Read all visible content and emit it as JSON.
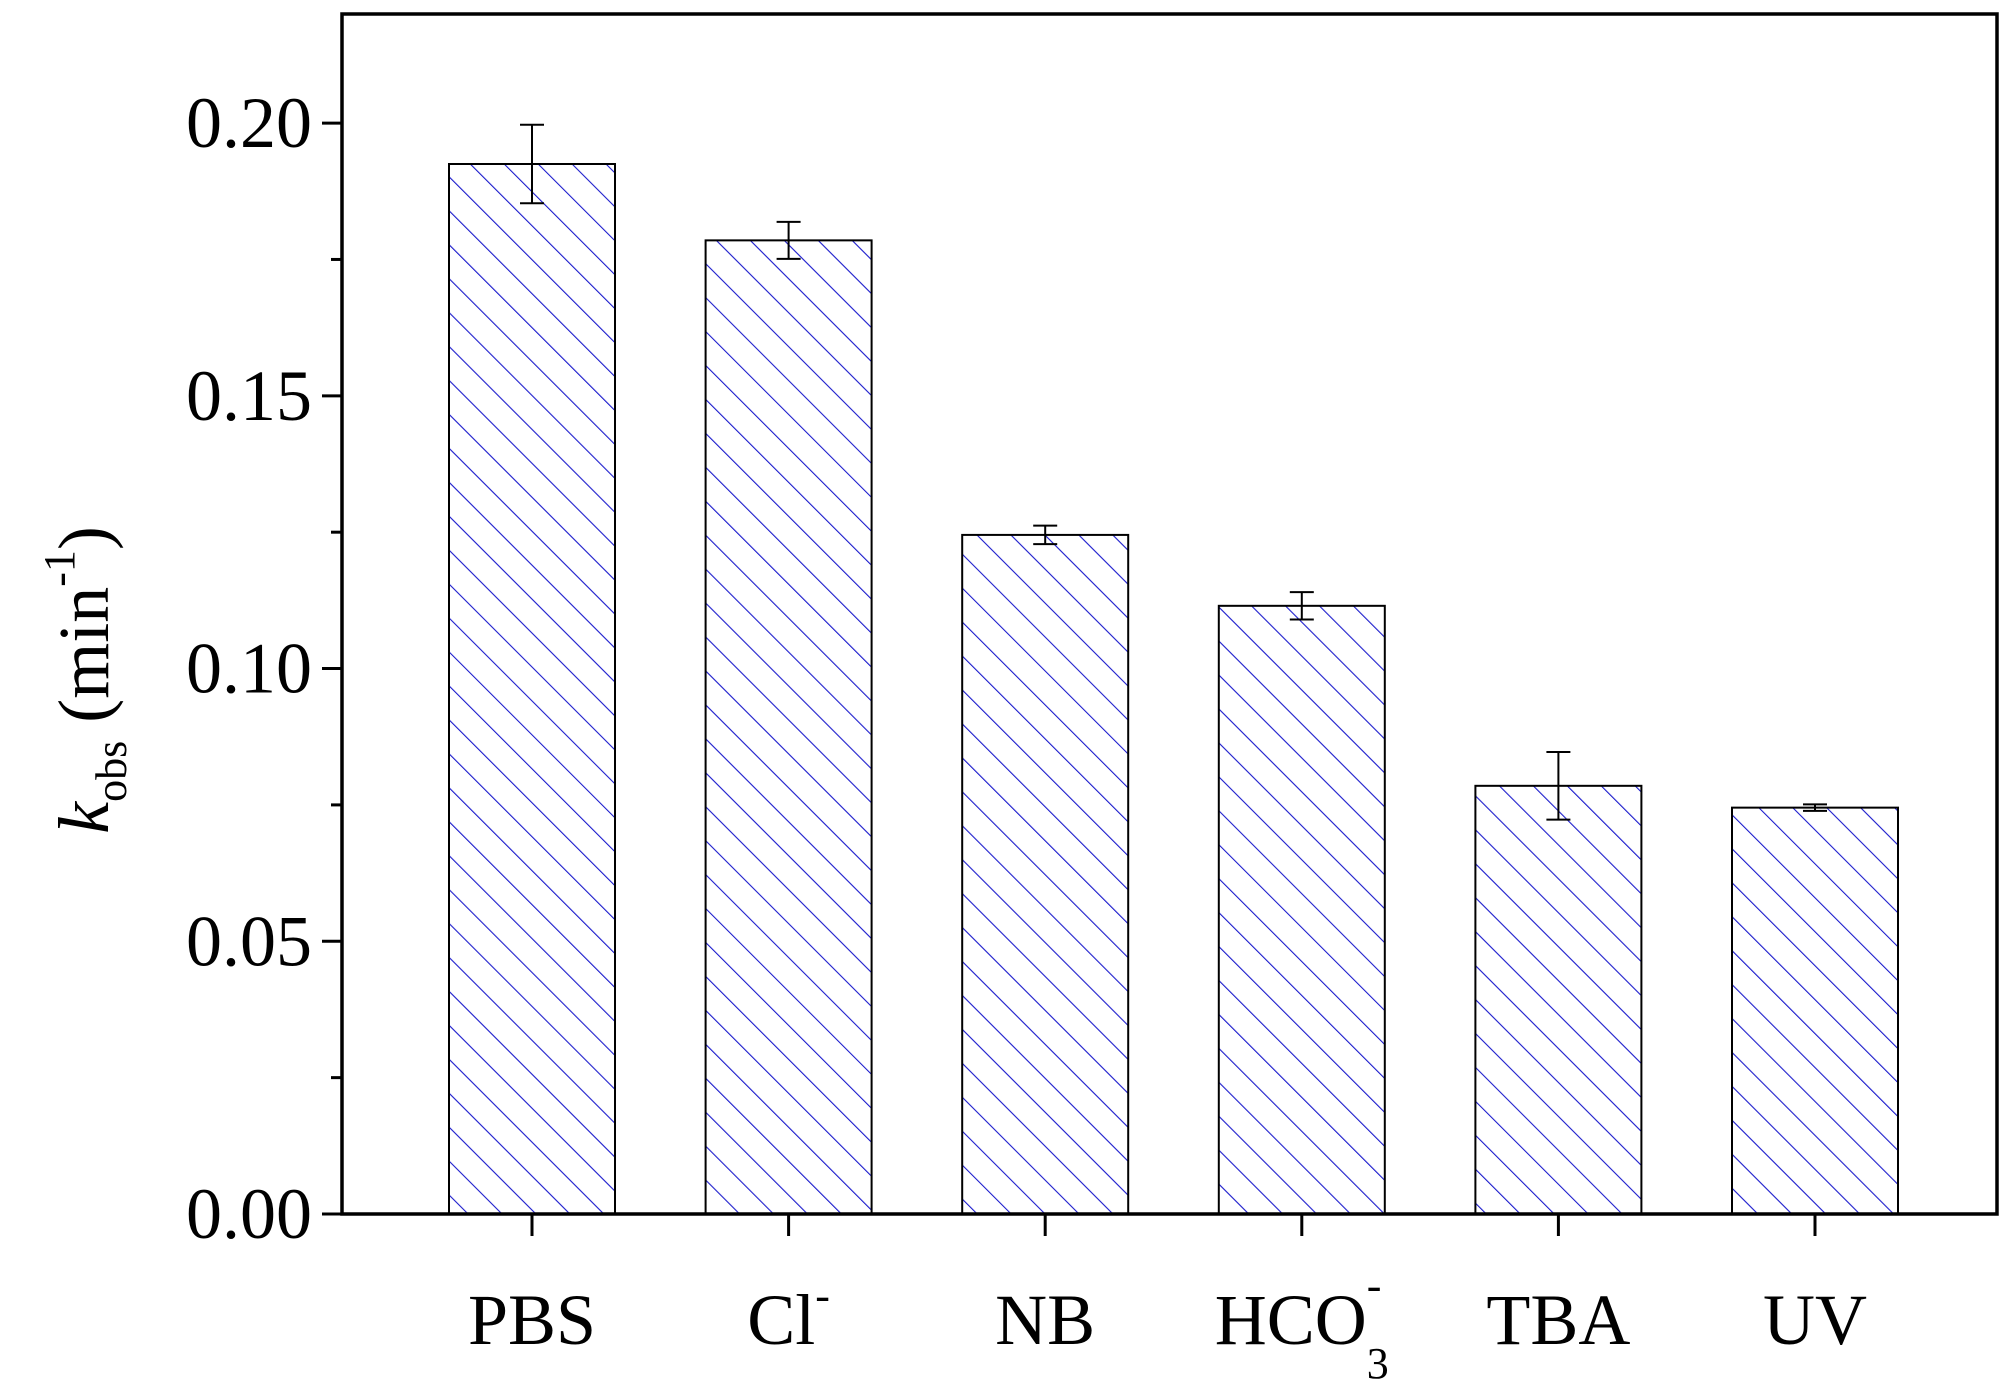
{
  "chart_data": {
    "type": "bar",
    "categories": [
      {
        "base": "PBS",
        "sup": "",
        "sub": ""
      },
      {
        "base": "Cl",
        "sup": "-",
        "sub": ""
      },
      {
        "base": "NB",
        "sup": "",
        "sub": ""
      },
      {
        "base": "HCO",
        "sup": "-",
        "sub": "3"
      },
      {
        "base": "TBA",
        "sup": "",
        "sub": ""
      },
      {
        "base": "UV",
        "sup": "",
        "sub": ""
      }
    ],
    "values": [
      0.1925,
      0.1785,
      0.1245,
      0.1115,
      0.0785,
      0.0745
    ],
    "errors": [
      0.0072,
      0.0034,
      0.0017,
      0.0025,
      0.0062,
      0.0006
    ],
    "ylabel": {
      "italic": "k",
      "sub": "obs",
      "text": " (min",
      "sup": "-1",
      "end": ")"
    },
    "yticks": [
      "0.00",
      "0.05",
      "0.10",
      "0.15",
      "0.20"
    ],
    "ylim": [
      0,
      0.22
    ],
    "bar_fill": "hatched",
    "colors": {
      "hatch": "#1a1acc",
      "outline": "#000000",
      "axis": "#000000"
    },
    "grid": false,
    "legend": "none"
  }
}
